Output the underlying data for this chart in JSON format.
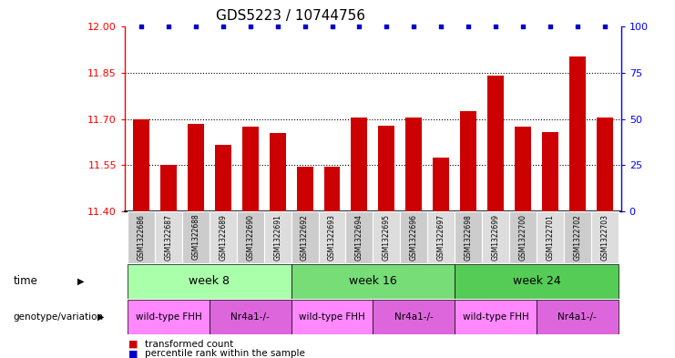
{
  "title": "GDS5223 / 10744756",
  "samples": [
    "GSM1322686",
    "GSM1322687",
    "GSM1322688",
    "GSM1322689",
    "GSM1322690",
    "GSM1322691",
    "GSM1322692",
    "GSM1322693",
    "GSM1322694",
    "GSM1322695",
    "GSM1322696",
    "GSM1322697",
    "GSM1322698",
    "GSM1322699",
    "GSM1322700",
    "GSM1322701",
    "GSM1322702",
    "GSM1322703"
  ],
  "bar_values": [
    11.7,
    11.55,
    11.685,
    11.615,
    11.675,
    11.655,
    11.545,
    11.545,
    11.705,
    11.678,
    11.705,
    11.575,
    11.725,
    11.84,
    11.675,
    11.658,
    11.905,
    11.705
  ],
  "percentile_values": [
    100,
    100,
    100,
    100,
    100,
    100,
    100,
    100,
    100,
    100,
    100,
    100,
    100,
    100,
    100,
    100,
    100,
    100
  ],
  "bar_color": "#cc0000",
  "percentile_color": "#0000cc",
  "ylim_left": [
    11.4,
    12.0
  ],
  "ylim_right": [
    0,
    100
  ],
  "yticks_left": [
    11.4,
    11.55,
    11.7,
    11.85,
    12.0
  ],
  "yticks_right": [
    0,
    25,
    50,
    75,
    100
  ],
  "hlines": [
    11.55,
    11.7,
    11.85
  ],
  "week8_color": "#aaffaa",
  "week16_color": "#77dd77",
  "week24_color": "#55cc55",
  "wt_color": "#ff88ff",
  "nr4_color": "#dd66dd",
  "cell_color_odd": "#cccccc",
  "cell_color_even": "#dddddd",
  "time_label": "time",
  "genotype_label": "genotype/variation",
  "legend_bar": "transformed count",
  "legend_pct": "percentile rank within the sample",
  "background_color": "#ffffff"
}
